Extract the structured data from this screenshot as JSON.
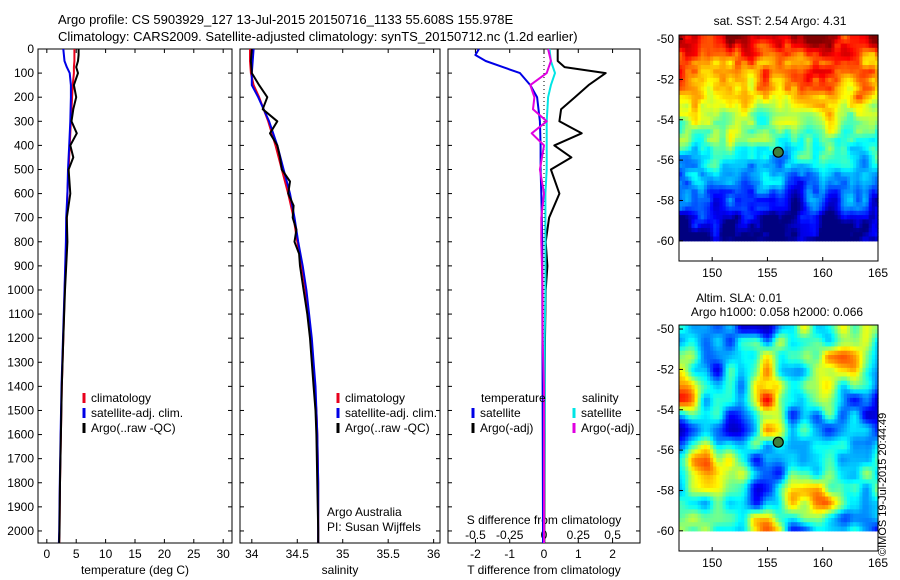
{
  "titles": {
    "line1": "Argo profile: CS 5903929_127 13-Jul-2015 20150716_1133 55.608S 155.978E",
    "line2": "Climatology: CARS2009. Satellite-adjusted climatology: synTS_20150712.nc (1.2d earlier)"
  },
  "stamp": "©IMOS 19-Jul-2015 20:44:49",
  "colors": {
    "climatology": "#e8001c",
    "satellite": "#0000e6",
    "argo": "#000000",
    "salinity_satellite": "#00e5e5",
    "salinity_argo": "#e000e0"
  },
  "depth_axis": {
    "range": [
      0,
      2050
    ],
    "ticks": [
      0,
      100,
      200,
      300,
      400,
      500,
      600,
      700,
      800,
      900,
      1000,
      1100,
      1200,
      1300,
      1400,
      1500,
      1600,
      1700,
      1800,
      1900,
      2000
    ]
  },
  "chart_data": [
    {
      "type": "line",
      "id": "temperature",
      "xlabel": "temperature (deg C)",
      "xlim": [
        -1.5,
        31.5
      ],
      "xticks": [
        0,
        5,
        10,
        15,
        20,
        25,
        30
      ],
      "legend": [
        "climatology",
        "satellite-adj. clim.",
        "Argo(..raw -QC)"
      ],
      "series": [
        {
          "name": "climatology",
          "color": "red",
          "depth": [
            0,
            25,
            50,
            75,
            100,
            150,
            200,
            300,
            400,
            500,
            600,
            700,
            800,
            1000,
            1200,
            1400,
            1600,
            1800,
            2000,
            2050
          ],
          "values": [
            4.7,
            4.7,
            4.7,
            4.6,
            4.6,
            4.4,
            4.3,
            4.1,
            3.9,
            3.7,
            3.5,
            3.4,
            3.3,
            3.05,
            2.8,
            2.55,
            2.4,
            2.25,
            2.15,
            2.1
          ]
        },
        {
          "name": "satellite-adj. clim.",
          "color": "blue",
          "depth": [
            0,
            25,
            50,
            75,
            100,
            150,
            200,
            300,
            400,
            500,
            600,
            700,
            800,
            1000,
            1200,
            1400,
            1600,
            1800,
            2000,
            2050
          ],
          "values": [
            2.8,
            2.9,
            3.0,
            3.4,
            3.9,
            4.1,
            4.1,
            4.0,
            3.8,
            3.6,
            3.5,
            3.3,
            3.25,
            3.0,
            2.75,
            2.5,
            2.35,
            2.2,
            2.1,
            2.05
          ]
        },
        {
          "name": "Argo(..raw -QC)",
          "color": "black",
          "depth": [
            0,
            25,
            50,
            75,
            100,
            150,
            200,
            250,
            300,
            350,
            400,
            450,
            500,
            600,
            700,
            800,
            1000,
            1200,
            1400,
            1600,
            1800,
            2000,
            2050
          ],
          "values": [
            5.4,
            5.4,
            5.3,
            5.0,
            5.3,
            4.6,
            5.0,
            4.5,
            4.2,
            5.1,
            4.0,
            4.5,
            3.7,
            4.0,
            3.4,
            3.5,
            3.1,
            2.8,
            2.55,
            2.4,
            2.25,
            2.15,
            2.1
          ]
        }
      ]
    },
    {
      "type": "line",
      "id": "salinity",
      "xlabel": "salinity",
      "xlim": [
        33.87,
        36.07
      ],
      "xticks": [
        34,
        34.5,
        35,
        35.5,
        36
      ],
      "legend": [
        "climatology",
        "satellite-adj. clim.",
        "Argo(..raw -QC)"
      ],
      "annotations": [
        "Argo Australia",
        "PI: Susan Wijffels"
      ],
      "series": [
        {
          "name": "climatology",
          "color": "red",
          "depth": [
            0,
            50,
            100,
            150,
            200,
            300,
            400,
            500,
            600,
            700,
            800,
            900,
            1000,
            1100,
            1200,
            1300,
            1400,
            1500,
            1600,
            1800,
            2000,
            2050
          ],
          "values": [
            33.98,
            33.98,
            33.99,
            34.02,
            34.08,
            34.18,
            34.26,
            34.33,
            34.4,
            34.46,
            34.5,
            34.55,
            34.59,
            34.62,
            34.65,
            34.67,
            34.69,
            34.71,
            34.72,
            34.73,
            34.73,
            34.73
          ]
        },
        {
          "name": "satellite-adj. clim.",
          "color": "blue",
          "depth": [
            0,
            50,
            100,
            150,
            200,
            300,
            400,
            500,
            600,
            700,
            800,
            900,
            1000,
            1100,
            1200,
            1300,
            1400,
            1500,
            1600,
            1800,
            2000,
            2050
          ],
          "values": [
            34.02,
            34.01,
            34.0,
            34.0,
            34.07,
            34.19,
            34.28,
            34.35,
            34.42,
            34.47,
            34.51,
            34.56,
            34.6,
            34.63,
            34.66,
            34.68,
            34.7,
            34.71,
            34.72,
            34.73,
            34.73,
            34.73
          ]
        },
        {
          "name": "Argo(..raw -QC)",
          "color": "black",
          "depth": [
            0,
            50,
            100,
            150,
            200,
            250,
            300,
            350,
            400,
            450,
            500,
            550,
            600,
            650,
            700,
            750,
            800,
            850,
            900,
            1000,
            1100,
            1200,
            1300,
            1400,
            1500,
            1600,
            1800,
            2000,
            2050
          ],
          "values": [
            34.0,
            33.99,
            34.0,
            34.08,
            34.17,
            34.12,
            34.28,
            34.2,
            34.28,
            34.31,
            34.33,
            34.42,
            34.4,
            34.46,
            34.45,
            34.49,
            34.47,
            34.52,
            34.53,
            34.57,
            34.61,
            34.64,
            34.66,
            34.68,
            34.7,
            34.71,
            34.72,
            34.73,
            34.73
          ]
        }
      ]
    },
    {
      "type": "line",
      "id": "difference",
      "xlabel": "T difference from climatology",
      "top_label": "S difference from climatology",
      "xlim": [
        -2.8,
        2.8
      ],
      "xticks": [
        -2,
        -1,
        0,
        1,
        2
      ],
      "s_ticks": [
        -0.5,
        -0.25,
        0,
        0.25,
        0.5
      ],
      "s_per_t": 0.25,
      "legend_headers": [
        "temperature",
        "salinity"
      ],
      "legend": [
        "satellite",
        "Argo(-adj)",
        "satellite",
        "Argo(-adj)"
      ],
      "series": [
        {
          "name": "satellite",
          "group": "temperature",
          "color": "blue",
          "depth": [
            0,
            25,
            50,
            75,
            100,
            150,
            200,
            300,
            400,
            500,
            600,
            800,
            1000,
            1400,
            2000,
            2050
          ],
          "values": [
            -1.9,
            -2.0,
            -1.7,
            -1.2,
            -0.7,
            -0.4,
            -0.2,
            -0.12,
            -0.1,
            -0.1,
            -0.08,
            -0.05,
            -0.05,
            -0.04,
            -0.03,
            -0.03
          ]
        },
        {
          "name": "Argo(-adj)",
          "group": "temperature",
          "color": "black",
          "depth": [
            0,
            50,
            75,
            100,
            150,
            200,
            250,
            300,
            350,
            400,
            450,
            500,
            600,
            700,
            800,
            900,
            1000,
            1200,
            1400,
            1600,
            2000,
            2050
          ],
          "values": [
            0.4,
            0.4,
            0.6,
            1.8,
            1.3,
            0.9,
            0.5,
            0.45,
            1.1,
            0.3,
            0.8,
            0.2,
            0.45,
            0.15,
            0.05,
            0.1,
            0.05,
            0.03,
            0.02,
            0.02,
            0.01,
            0.01
          ]
        },
        {
          "name": "satellite",
          "group": "salinity",
          "color": "cyan",
          "depth": [
            0,
            50,
            100,
            150,
            200,
            300,
            400,
            500,
            600,
            800,
            1000,
            1200,
            1400,
            2000,
            2050
          ],
          "values": [
            0.04,
            0.05,
            0.08,
            0.05,
            0.03,
            0.02,
            0.02,
            0.02,
            0.01,
            0.01,
            0.01,
            0.005,
            0.005,
            0.0,
            0.0
          ]
        },
        {
          "name": "Argo(-adj)",
          "group": "salinity",
          "color": "magenta",
          "depth": [
            0,
            50,
            100,
            150,
            200,
            250,
            300,
            350,
            400,
            500,
            600,
            700,
            800,
            1000,
            1200,
            1400,
            1600,
            2000,
            2050
          ],
          "values": [
            0.03,
            0.05,
            0.02,
            -0.1,
            -0.07,
            -0.08,
            0.02,
            -0.09,
            0.0,
            -0.03,
            0.0,
            -0.02,
            -0.02,
            -0.01,
            -0.01,
            0.0,
            0.0,
            0.0,
            0.0
          ]
        }
      ]
    },
    {
      "type": "heatmap",
      "id": "sst-map",
      "title": "sat. SST: 2.54 Argo: 4.31",
      "xlim": [
        147,
        165
      ],
      "ylim": [
        -61,
        -49.8
      ],
      "xticks": [
        150,
        155,
        160,
        165
      ],
      "yticks": [
        -50,
        -52,
        -54,
        -56,
        -58,
        -60
      ],
      "data_extent_lat": -60,
      "marker": {
        "lon": 155.978,
        "lat": -55.608
      }
    },
    {
      "type": "heatmap",
      "id": "sla-map",
      "title": "Altim. SLA: 0.01",
      "subtitle": "Argo h1000: 0.058 h2000: 0.066",
      "xlim": [
        147,
        165
      ],
      "ylim": [
        -61,
        -49.8
      ],
      "xticks": [
        150,
        155,
        160,
        165
      ],
      "yticks": [
        -50,
        -52,
        -54,
        -56,
        -58,
        -60
      ],
      "data_extent_lat": -60,
      "marker": {
        "lon": 155.978,
        "lat": -55.608
      }
    }
  ]
}
